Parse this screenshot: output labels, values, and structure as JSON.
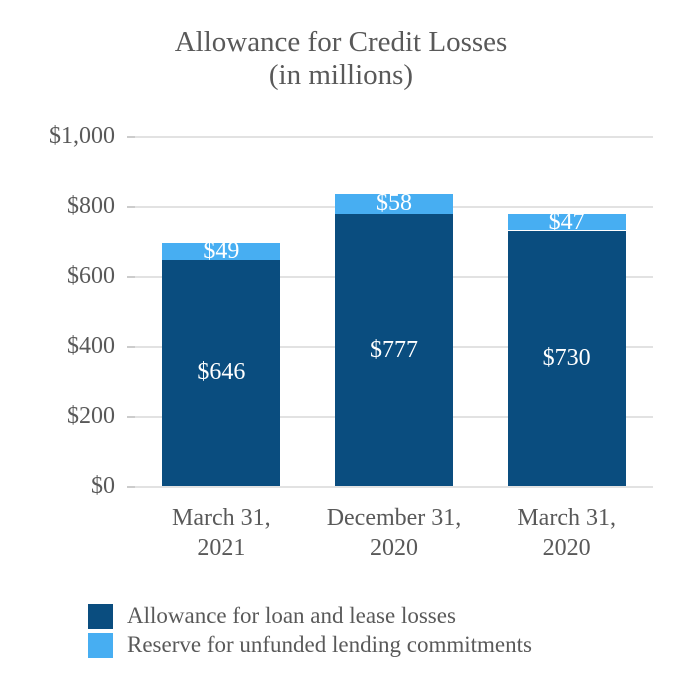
{
  "chart_data": {
    "type": "bar",
    "stacked": true,
    "title": "Allowance for Credit Losses",
    "subtitle": "(in millions)",
    "categories": [
      [
        "March 31,",
        "2021"
      ],
      [
        "December 31,",
        "2020"
      ],
      [
        "March 31,",
        "2020"
      ]
    ],
    "series": [
      {
        "name": "Allowance for loan and lease losses",
        "color": "#0a4d7f",
        "values": [
          646,
          777,
          730
        ],
        "data_labels": [
          "$646",
          "$777",
          "$730"
        ]
      },
      {
        "name": "Reserve for unfunded lending commitments",
        "color": "#47aef2",
        "values": [
          49,
          58,
          47
        ],
        "data_labels": [
          "$49",
          "$58",
          "$47"
        ]
      }
    ],
    "y_axis": {
      "min": 0,
      "max": 1000,
      "step": 200,
      "tick_labels": [
        "$0",
        "$200",
        "$400",
        "$600",
        "$800",
        "$1,000"
      ]
    },
    "grid": true,
    "legend_position": "bottom-left",
    "text_color": "#595959",
    "gridline_color": "#e2e2e2",
    "value_label_color": "#ffffff"
  }
}
